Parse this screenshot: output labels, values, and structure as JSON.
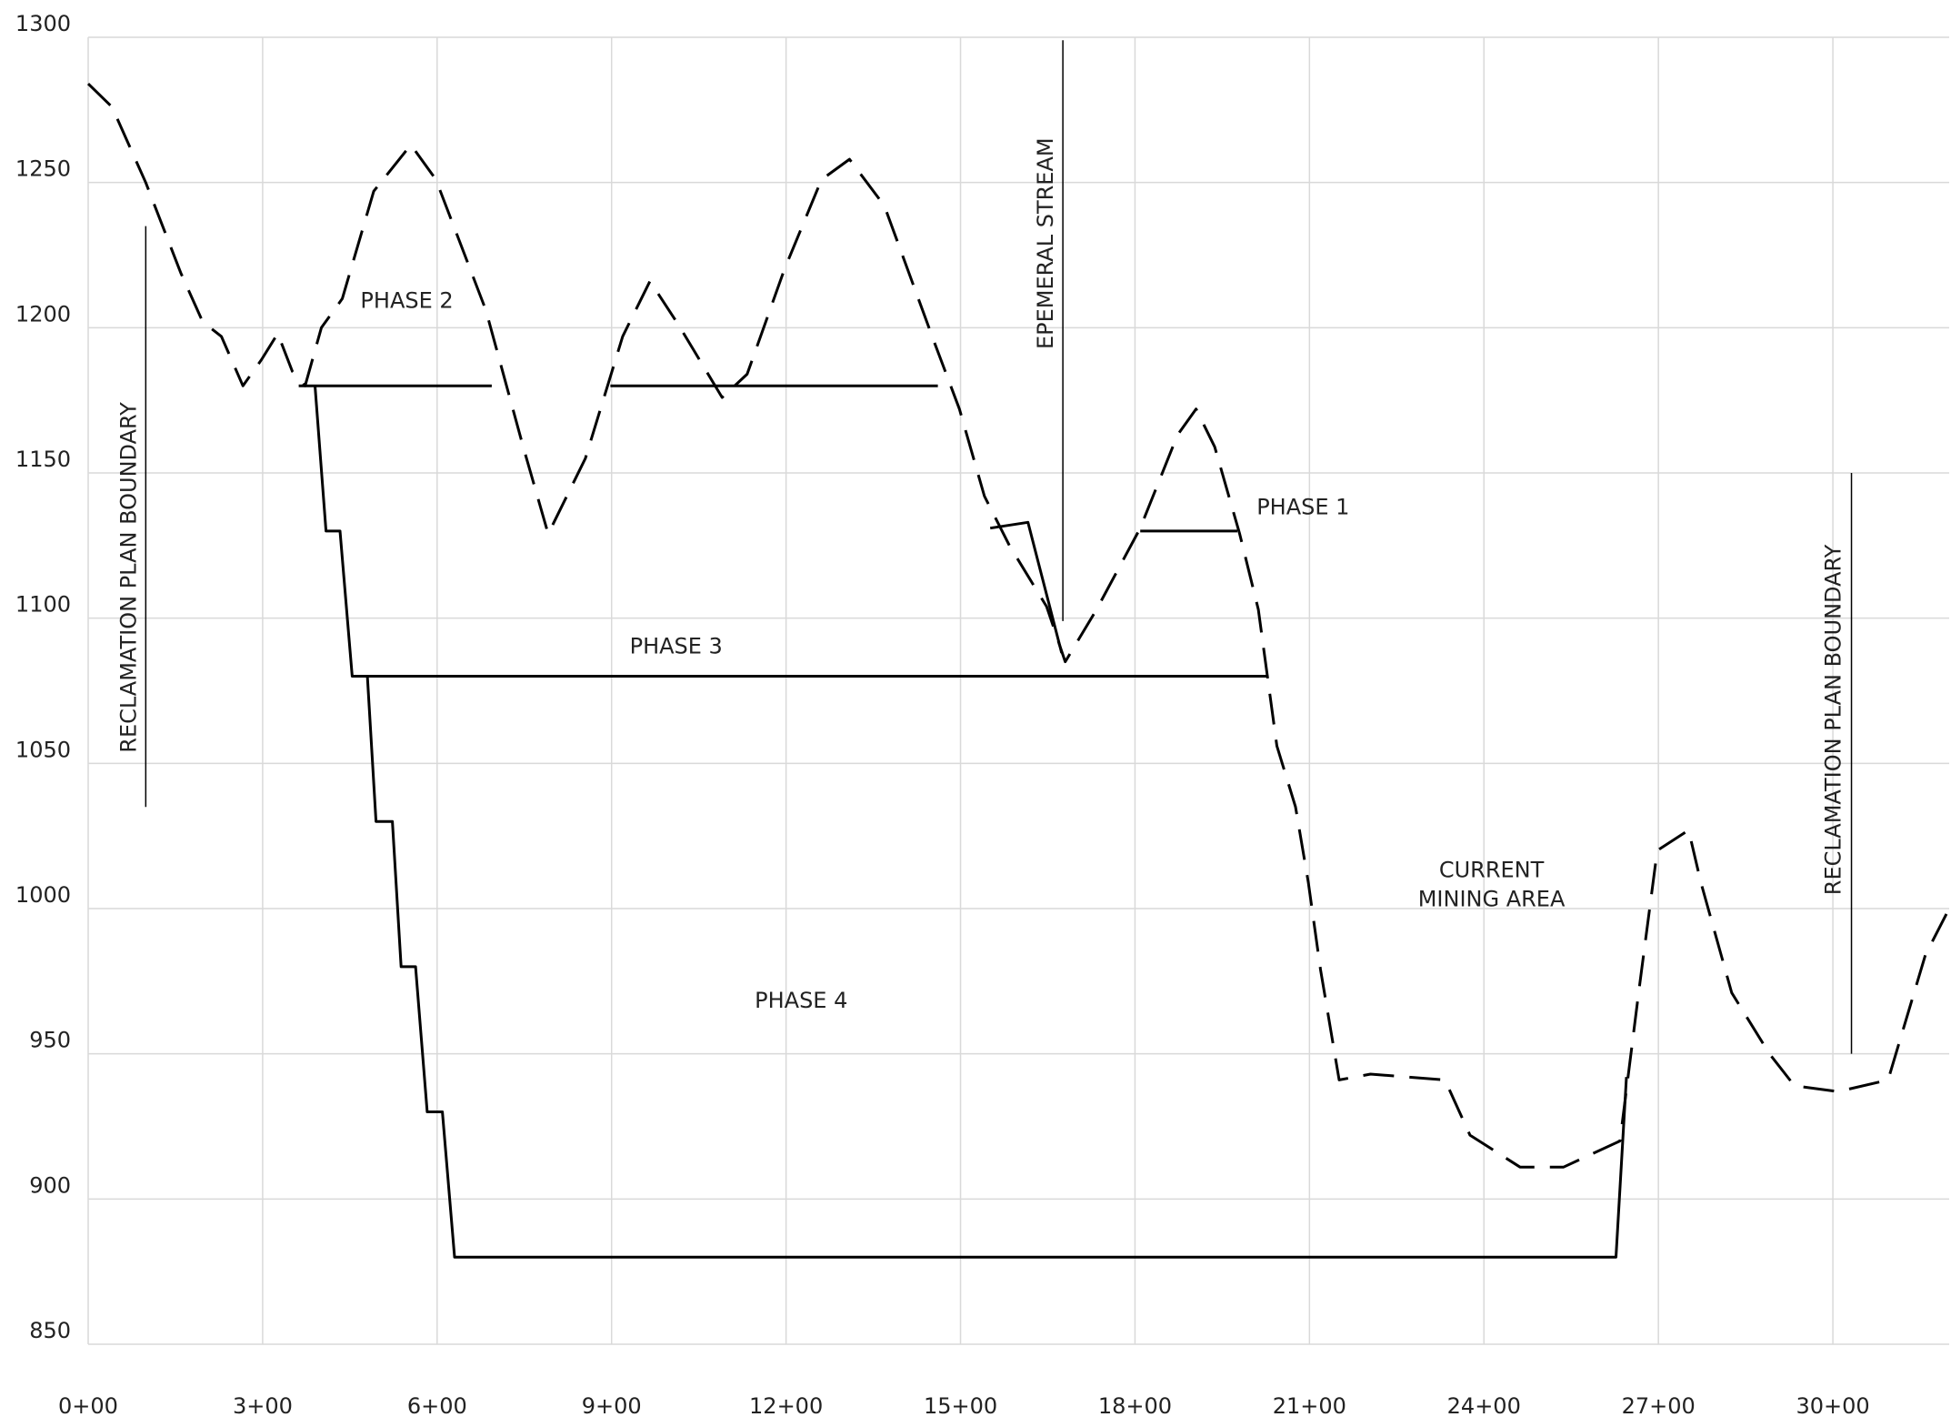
{
  "chart_data": {
    "type": "line",
    "xlim": [
      0,
      3200
    ],
    "ylim": [
      850,
      1300
    ],
    "xticks": [
      {
        "value": 0,
        "label": "0+00"
      },
      {
        "value": 300,
        "label": "3+00"
      },
      {
        "value": 600,
        "label": "6+00"
      },
      {
        "value": 900,
        "label": "9+00"
      },
      {
        "value": 1200,
        "label": "12+00"
      },
      {
        "value": 1500,
        "label": "15+00"
      },
      {
        "value": 1800,
        "label": "18+00"
      },
      {
        "value": 2100,
        "label": "21+00"
      },
      {
        "value": 2400,
        "label": "24+00"
      },
      {
        "value": 2700,
        "label": "27+00"
      },
      {
        "value": 3000,
        "label": "30+00"
      }
    ],
    "yticks": [
      850,
      900,
      950,
      1000,
      1050,
      1100,
      1150,
      1200,
      1250,
      1300
    ],
    "grid": true,
    "series": [
      {
        "color": "#000000",
        "dash": true,
        "x": [
          0,
          41,
          99,
          159,
          197,
          229,
          266,
          298,
          326,
          351,
          373,
          401,
          437,
          491,
          555,
          598,
          684,
          748,
          791,
          855,
          919,
          966,
          1015,
          1090,
          1133,
          1197,
          1261,
          1309,
          1369,
          1455,
          1498,
          1541,
          1584,
          1648,
          1680,
          1734,
          1809,
          1873,
          1905,
          1937,
          1980,
          2012,
          2044,
          2076,
          2098,
          2119,
          2151,
          2205,
          2333,
          2376,
          2462,
          2537,
          2634,
          2666,
          2698,
          2752,
          2773,
          2826,
          2891,
          2934,
          3009,
          3095,
          3159,
          3200
        ],
        "values": [
          1284,
          1276,
          1250,
          1219,
          1202,
          1197,
          1180,
          1189,
          1198,
          1185,
          1180,
          1200,
          1210,
          1247,
          1263,
          1251,
          1206,
          1159,
          1129,
          1155,
          1197,
          1216,
          1201,
          1176,
          1184,
          1220,
          1251,
          1258,
          1242,
          1195,
          1172,
          1142,
          1125,
          1104,
          1085,
          1103,
          1131,
          1163,
          1172,
          1159,
          1129,
          1103,
          1056,
          1035,
          1009,
          979,
          941,
          943,
          941,
          922,
          911,
          911,
          920,
          971,
          1020,
          1027,
          1009,
          971,
          950,
          939,
          937,
          941,
          984,
          1000
        ]
      },
      {
        "color": "#000000",
        "dash": false,
        "x": [
          362,
          694,
          null,
          898,
          1461,
          null,
          1551,
          1616,
          1674,
          null,
          1809,
          1976,
          null,
          454,
          2029,
          null,
          390,
          409,
          433,
          454,
          480,
          495,
          523,
          538,
          563,
          583,
          609,
          630,
          2627,
          2645
        ],
        "values": [
          1180,
          1180,
          null,
          1180,
          1180,
          null,
          1131,
          1133,
          1088,
          null,
          1130,
          1130,
          null,
          1080,
          1080,
          null,
          1180,
          1130,
          1130,
          1080,
          1080,
          1030,
          1030,
          980,
          980,
          930,
          930,
          880,
          880,
          942
        ]
      }
    ],
    "annotations": [
      {
        "text": [
          "PHASE 2"
        ],
        "x": 548,
        "y": 1209,
        "rotate": false
      },
      {
        "text": [
          "PHASE 1"
        ],
        "x": 2089,
        "y": 1138,
        "rotate": false
      },
      {
        "text": [
          "PHASE 3"
        ],
        "x": 1011,
        "y": 1090,
        "rotate": false
      },
      {
        "text": [
          "PHASE 4"
        ],
        "x": 1226,
        "y": 968,
        "rotate": false
      },
      {
        "text": [
          "CURRENT",
          "MINING AREA"
        ],
        "x": 2413,
        "y": 1008,
        "rotate": false
      },
      {
        "text": [
          "RECLAMATION PLAN BOUNDARY"
        ],
        "x": 71,
        "y": 1114,
        "rotate": true
      },
      {
        "text": [
          "RECLAMATION PLAN BOUNDARY"
        ],
        "x": 3002,
        "y": 1065,
        "rotate": true
      },
      {
        "text": [
          "EPEMERAL STREAM"
        ],
        "x": 1648,
        "y": 1229,
        "rotate": true
      }
    ],
    "marker_lines": [
      {
        "x": 99,
        "y": [
          1235,
          1035
        ]
      },
      {
        "x": 3032,
        "y": [
          1150,
          950
        ]
      },
      {
        "x": 1676,
        "y": [
          1299,
          1099
        ]
      }
    ]
  }
}
